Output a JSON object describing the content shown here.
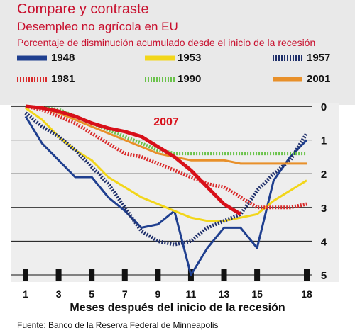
{
  "chart_data": {
    "type": "line",
    "title": "Compare y contraste",
    "subtitle": "Desempleo no agrícola en EU",
    "ylabel": "Porcentaje de disminución acumulado desde el inicio de la recesión",
    "xlabel": "Meses después del inicio de la recesión",
    "source": "Fuente: Banco de la Reserva Federal de Minneapolis",
    "annotation": "2007",
    "x_ticks": [
      "1",
      "3",
      "5",
      "7",
      "9",
      "11",
      "13",
      "15",
      "18"
    ],
    "y_ticks": [
      "0",
      "1",
      "2",
      "3",
      "4",
      "5"
    ],
    "ylim": [
      0,
      5
    ],
    "y_inverted": true,
    "grid": true,
    "legend_position": "top",
    "series": [
      {
        "name": "1948",
        "color": "#1f3f8f",
        "style": "solid",
        "x": [
          1,
          2,
          3,
          4,
          5,
          6,
          7,
          8,
          9,
          10,
          11,
          12,
          13,
          14,
          15,
          16,
          17,
          18
        ],
        "y": [
          0.3,
          1.1,
          1.6,
          2.1,
          2.1,
          2.7,
          3.1,
          3.6,
          3.5,
          3.1,
          5.0,
          4.2,
          3.6,
          3.6,
          4.2,
          2.2,
          1.5,
          1.0
        ]
      },
      {
        "name": "1953",
        "color": "#f2d61a",
        "style": "solid",
        "x": [
          1,
          2,
          3,
          4,
          5,
          6,
          7,
          8,
          9,
          10,
          11,
          12,
          13,
          14,
          15,
          16,
          17,
          18
        ],
        "y": [
          0.05,
          0.4,
          0.9,
          1.3,
          1.6,
          2.1,
          2.4,
          2.7,
          2.9,
          3.1,
          3.3,
          3.4,
          3.4,
          3.3,
          3.2,
          2.8,
          2.5,
          2.2
        ]
      },
      {
        "name": "1957",
        "color": "#1f2f6a",
        "style": "dotted",
        "x": [
          1,
          2,
          3,
          4,
          5,
          6,
          7,
          8,
          9,
          10,
          11,
          12,
          13,
          14,
          15,
          16,
          17,
          18
        ],
        "y": [
          0.2,
          0.6,
          0.9,
          1.3,
          1.8,
          2.3,
          3.0,
          3.7,
          4.0,
          4.1,
          4.0,
          3.6,
          3.4,
          3.2,
          2.5,
          2.0,
          1.6,
          0.8
        ]
      },
      {
        "name": "1981",
        "color": "#d92a2a",
        "style": "dotted",
        "x": [
          1,
          2,
          3,
          4,
          5,
          6,
          7,
          8,
          9,
          10,
          11,
          12,
          13,
          14,
          15,
          16,
          17,
          18
        ],
        "y": [
          0.0,
          0.1,
          0.3,
          0.5,
          0.8,
          1.1,
          1.4,
          1.5,
          1.7,
          1.9,
          2.1,
          2.3,
          2.4,
          2.7,
          3.0,
          3.0,
          3.0,
          2.9
        ]
      },
      {
        "name": "1990",
        "color": "#6ac24a",
        "style": "dotted",
        "x": [
          1,
          2,
          3,
          4,
          5,
          6,
          7,
          8,
          9,
          10,
          11,
          12,
          13,
          14,
          15,
          16,
          17,
          18
        ],
        "y": [
          0.0,
          0.05,
          0.1,
          0.3,
          0.5,
          0.7,
          0.9,
          1.1,
          1.3,
          1.4,
          1.4,
          1.4,
          1.4,
          1.4,
          1.4,
          1.4,
          1.4,
          1.4
        ]
      },
      {
        "name": "2001",
        "color": "#e8902a",
        "style": "solid",
        "x": [
          1,
          2,
          3,
          4,
          5,
          6,
          7,
          8,
          9,
          10,
          11,
          12,
          13,
          14,
          15,
          16,
          17,
          18
        ],
        "y": [
          0.0,
          0.05,
          0.2,
          0.4,
          0.6,
          0.8,
          1.0,
          1.2,
          1.4,
          1.5,
          1.6,
          1.6,
          1.6,
          1.7,
          1.7,
          1.7,
          1.7,
          1.7
        ]
      },
      {
        "name": "2007",
        "color": "#d8101a",
        "style": "solid",
        "x": [
          1,
          2,
          3,
          4,
          5,
          6,
          7,
          8,
          9,
          10,
          11,
          12,
          13,
          14
        ],
        "y": [
          0.0,
          0.05,
          0.15,
          0.3,
          0.5,
          0.65,
          0.75,
          0.9,
          1.2,
          1.5,
          1.9,
          2.4,
          2.9,
          3.2
        ]
      }
    ]
  }
}
